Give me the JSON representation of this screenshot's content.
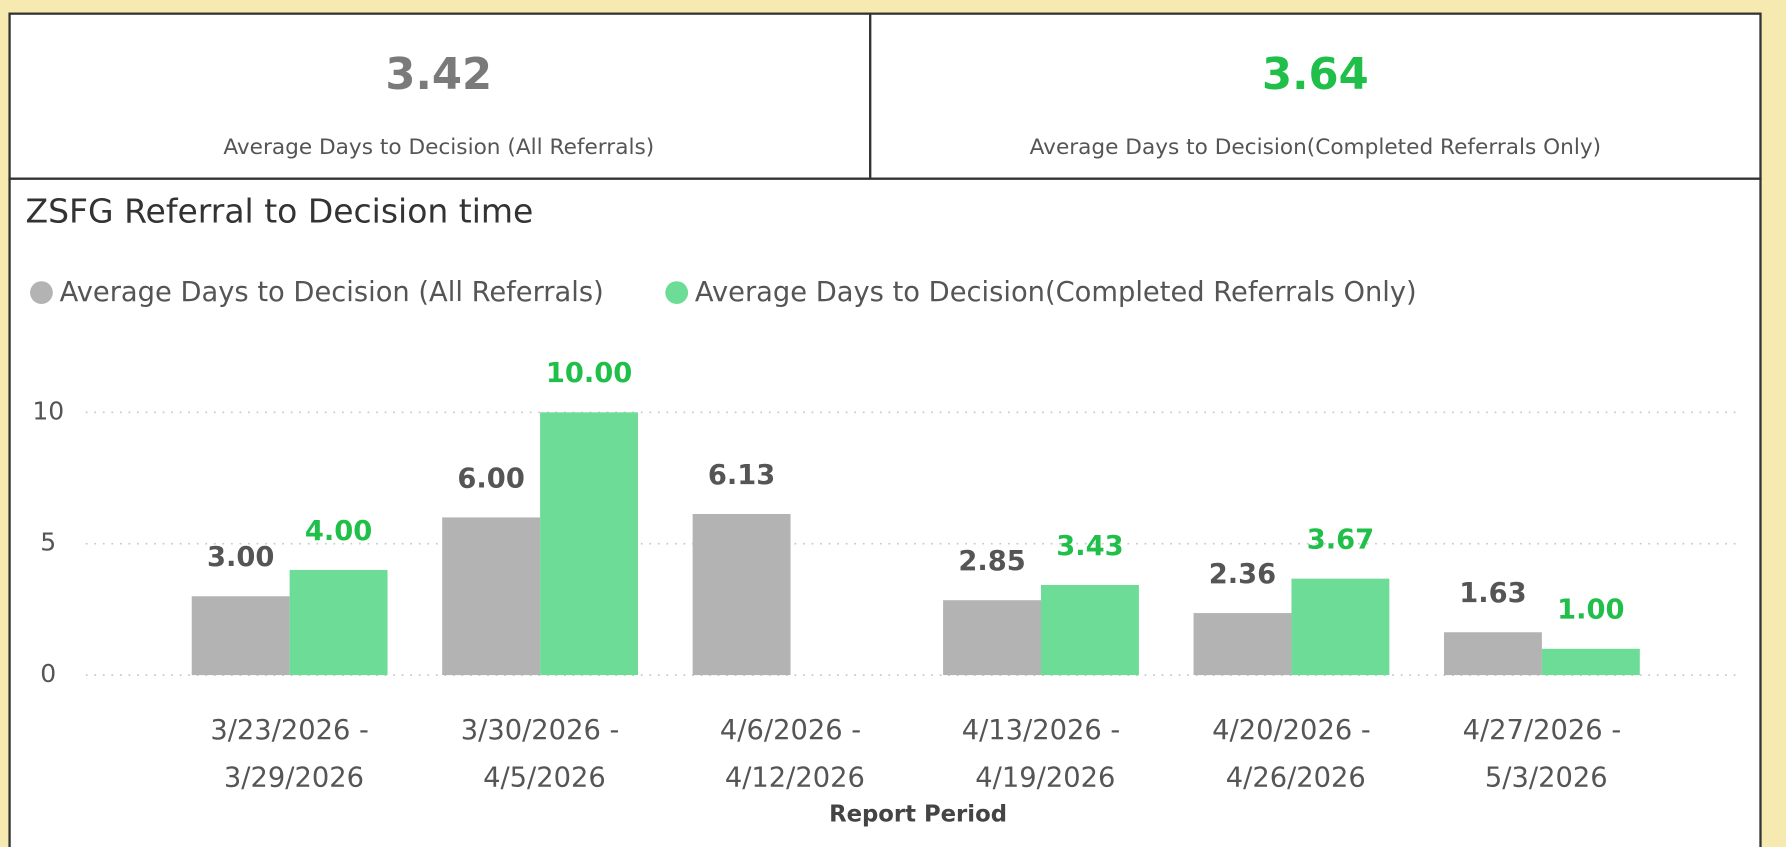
{
  "cards": [
    {
      "value": "3.42",
      "label": "Average Days to Decision (All Referrals)",
      "color": "#7a7a7a"
    },
    {
      "value": "3.64",
      "label": "Average Days to Decision(Completed Referrals Only)",
      "color": "#1fbf4a"
    }
  ],
  "chart_data": {
    "type": "bar",
    "title": "ZSFG Referral to Decision time",
    "x_label": "Report Period",
    "categories": [
      "3/23/2026 - 3/29/2026",
      "3/30/2026 - 4/5/2026",
      "4/6/2026 - 4/12/2026",
      "4/13/2026 - 4/19/2026",
      "4/20/2026 - 4/26/2026",
      "4/27/2026 - 5/3/2026"
    ],
    "series": [
      {
        "name": "Average Days to Decision (All Referrals)",
        "color": "#b3b3b3",
        "label_color": "#555555",
        "values": [
          3,
          6,
          6.13,
          2.85,
          2.36,
          1.63
        ],
        "value_labels": [
          "3.00",
          "6.00",
          "6.13",
          "2.85",
          "2.36",
          "1.63"
        ]
      },
      {
        "name": "Average Days to Decision(Completed Referrals Only)",
        "color": "#6ddc97",
        "label_color": "#1fbf4a",
        "values": [
          4,
          10,
          null,
          3.43,
          3.67,
          1
        ],
        "value_labels": [
          "4.00",
          "10.00",
          null,
          "3.43",
          "3.67",
          "1.00"
        ]
      }
    ],
    "ylim": [
      0,
      12
    ],
    "yticks": [
      0,
      5,
      10
    ],
    "grid": true,
    "legend": "top-left"
  }
}
